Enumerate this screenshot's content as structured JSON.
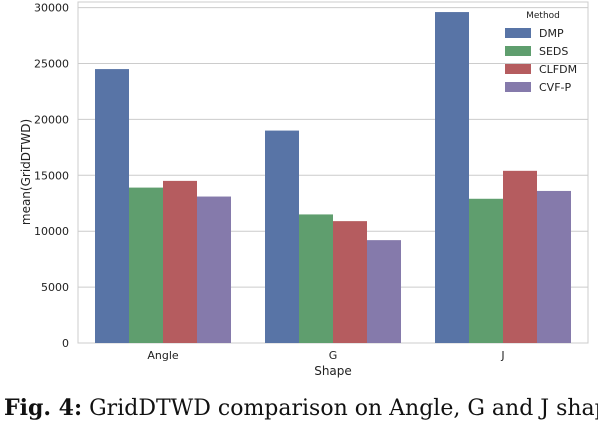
{
  "chart_data": {
    "type": "bar",
    "categories": [
      "Angle",
      "G",
      "J"
    ],
    "series": [
      {
        "name": "DMP",
        "values": [
          24500,
          19000,
          29600
        ]
      },
      {
        "name": "SEDS",
        "values": [
          13900,
          11500,
          12900
        ]
      },
      {
        "name": "CLFDM",
        "values": [
          14500,
          10900,
          15400
        ]
      },
      {
        "name": "CVF-P",
        "values": [
          13100,
          9200,
          13600
        ]
      }
    ],
    "xlabel": "Shape",
    "ylabel": "mean(GridDTWD)",
    "ylim": [
      0,
      30500
    ],
    "yticks": [
      0,
      5000,
      10000,
      15000,
      20000,
      25000,
      30000
    ],
    "legend": {
      "title": "Method",
      "placement": "top-right"
    },
    "grid": "horizontal",
    "colors": [
      "#5874a6",
      "#5f9e6e",
      "#b55c5f",
      "#857aab"
    ]
  },
  "caption": {
    "label": "Fig. 4:",
    "text": "GridDTWD comparison on Angle, G and J shapes"
  }
}
